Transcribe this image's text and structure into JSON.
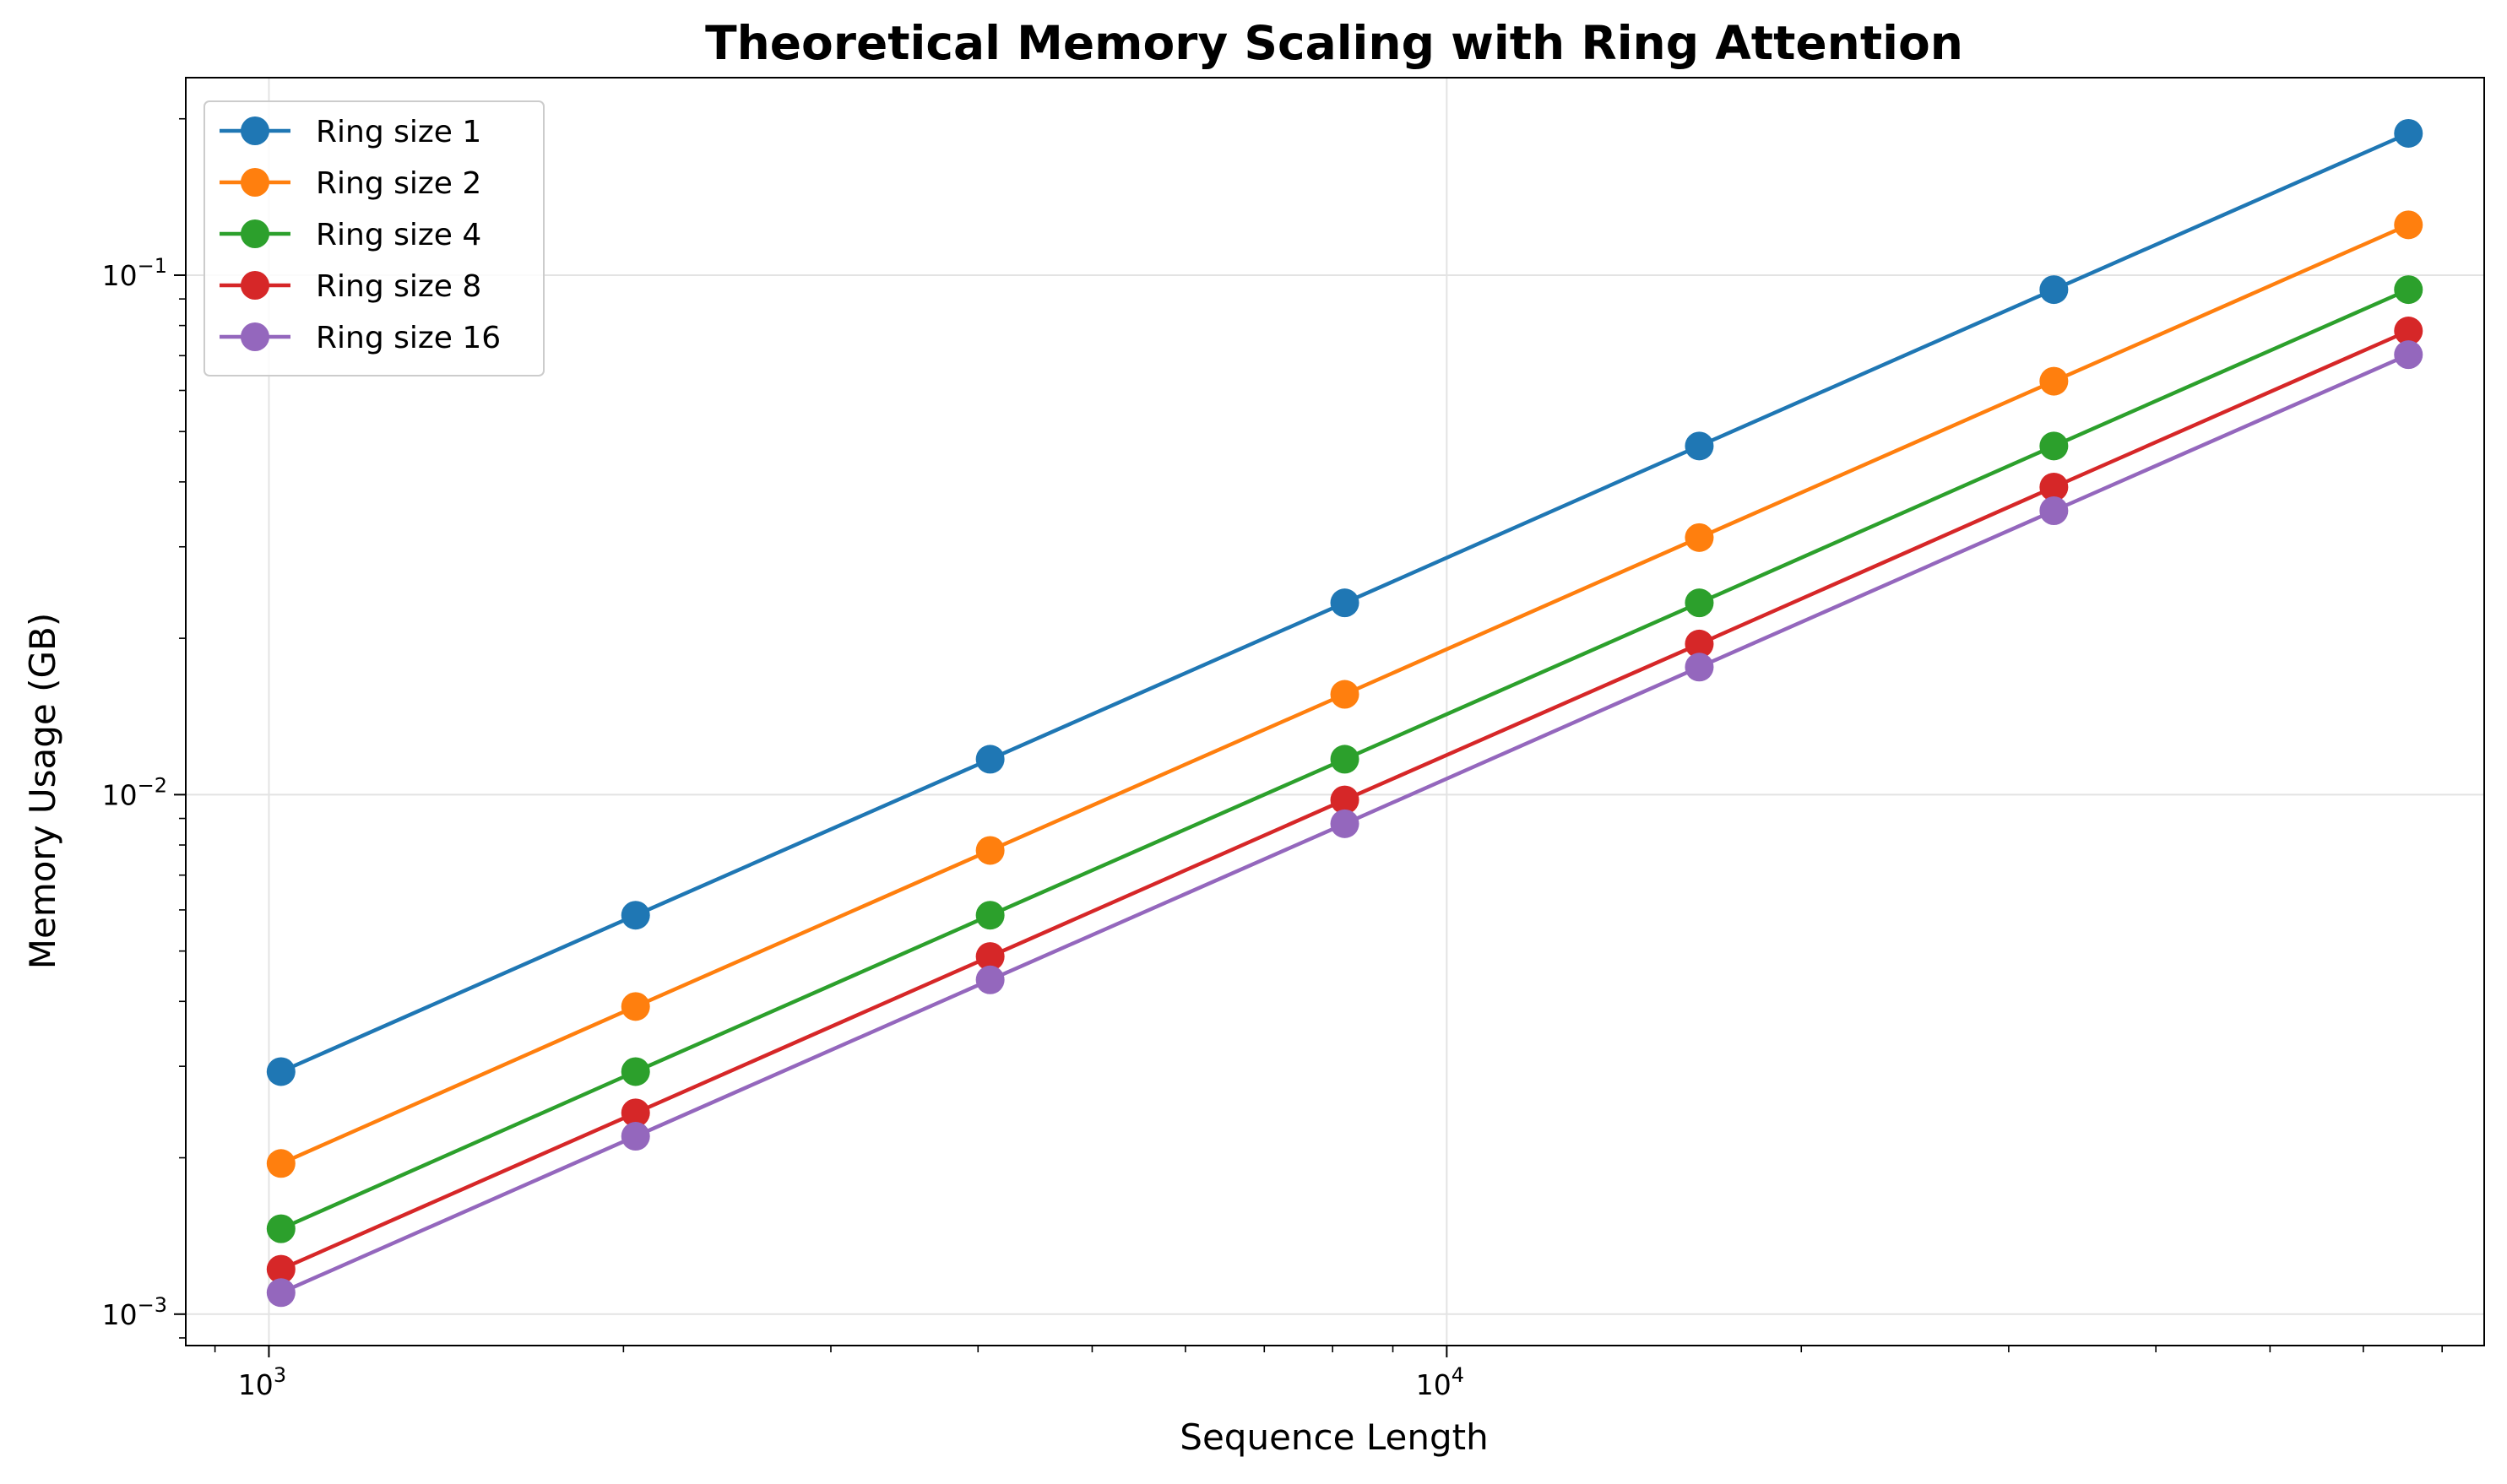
{
  "chart_data": {
    "type": "line",
    "title": "Theoretical Memory Scaling with Ring Attention",
    "xlabel": "Sequence Length",
    "ylabel": "Memory Usage (GB)",
    "xscale": "log",
    "yscale": "log",
    "xlim": [
      850,
      76000
    ],
    "ylim": [
      0.00087,
      0.24
    ],
    "grid": true,
    "legend_position": "top-left",
    "x": [
      1024,
      2048,
      4096,
      8192,
      16384,
      32768,
      65536
    ],
    "x_ticks": [
      {
        "value": 1000,
        "base": "10",
        "exp": "3"
      },
      {
        "value": 10000,
        "base": "10",
        "exp": "4"
      }
    ],
    "y_ticks": [
      {
        "value": 0.001,
        "base": "10",
        "exp": "−3"
      },
      {
        "value": 0.01,
        "base": "10",
        "exp": "−2"
      },
      {
        "value": 0.1,
        "base": "10",
        "exp": "−1"
      }
    ],
    "series": [
      {
        "name": "Ring size 1",
        "color": "#1f77b4",
        "values": [
          0.00293,
          0.00586,
          0.0117,
          0.0234,
          0.0469,
          0.0938,
          0.1875
        ]
      },
      {
        "name": "Ring size 2",
        "color": "#ff7f0e",
        "values": [
          0.00195,
          0.00391,
          0.00781,
          0.0156,
          0.03125,
          0.0625,
          0.125
        ]
      },
      {
        "name": "Ring size 4",
        "color": "#2ca02c",
        "values": [
          0.00146,
          0.00293,
          0.00586,
          0.0117,
          0.0234,
          0.0469,
          0.0938
        ]
      },
      {
        "name": "Ring size 8",
        "color": "#d62728",
        "values": [
          0.00122,
          0.00244,
          0.00488,
          0.00977,
          0.0195,
          0.0391,
          0.0781
        ]
      },
      {
        "name": "Ring size 16",
        "color": "#9467bd",
        "values": [
          0.0011,
          0.0022,
          0.0044,
          0.00879,
          0.0176,
          0.0352,
          0.0703
        ]
      }
    ]
  }
}
